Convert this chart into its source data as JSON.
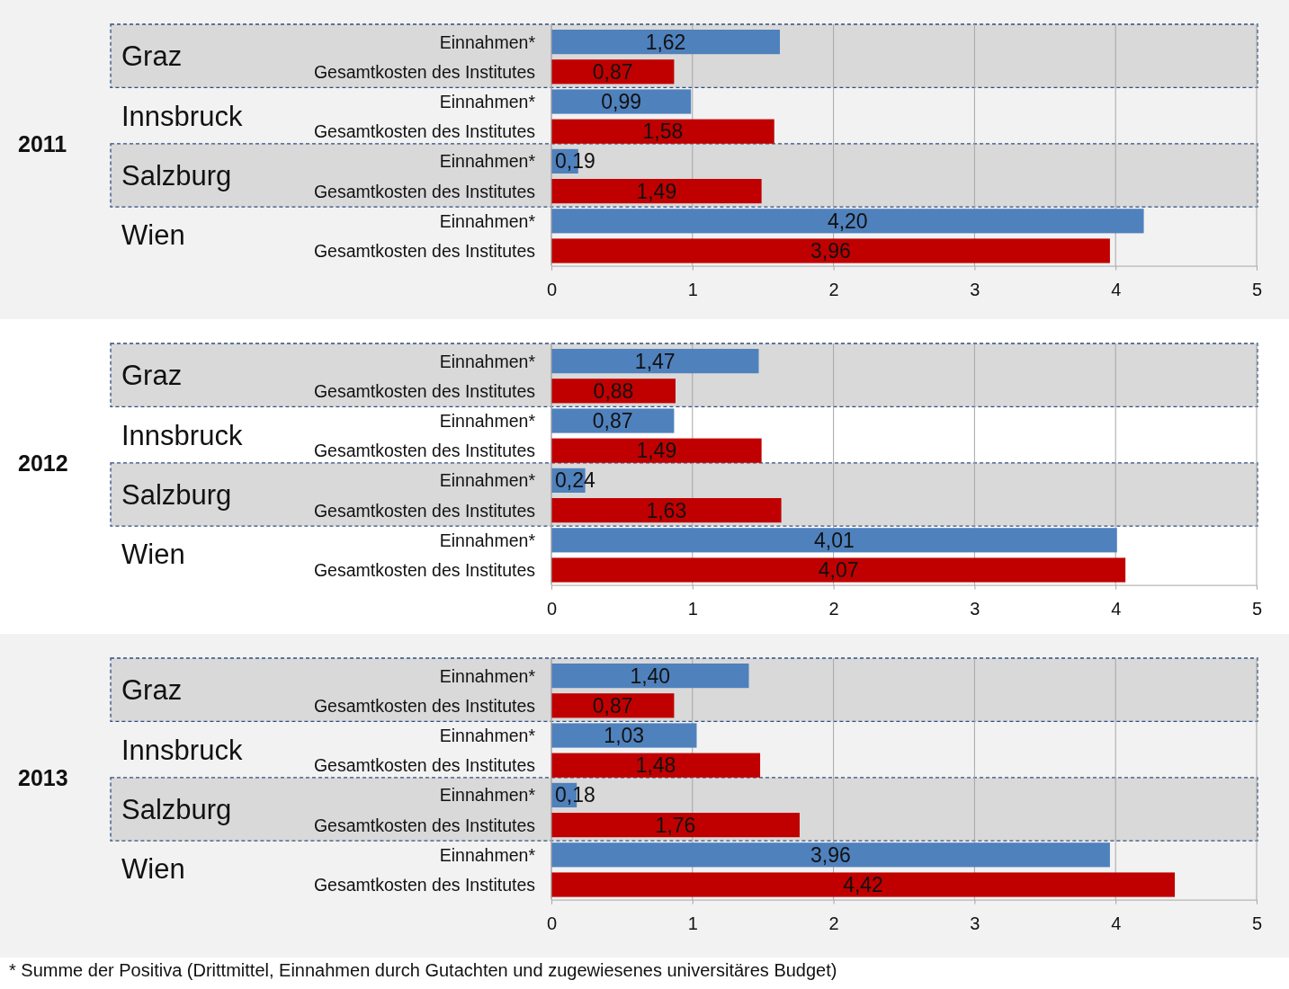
{
  "chart_data": [
    {
      "type": "bar",
      "orientation": "horizontal",
      "ylabel": "2011",
      "categories": [
        "Einnahmen*",
        "Gesamtkosten des Institutes",
        "Einnahmen*",
        "Gesamtkosten des Institutes",
        "Einnahmen*",
        "Gesamtkosten des Institutes",
        "Einnahmen*",
        "Gesamtkosten des Institutes"
      ],
      "values": [
        1.62,
        0.87,
        0.99,
        1.58,
        0.19,
        1.49,
        4.2,
        3.96
      ],
      "value_labels": [
        "1,62",
        "0,87",
        "0,99",
        "1,58",
        "0,19",
        "1,49",
        "4,20",
        "3,96"
      ],
      "colors": [
        "#4f81bd",
        "#c00000",
        "#4f81bd",
        "#c00000",
        "#4f81bd",
        "#c00000",
        "#4f81bd",
        "#c00000"
      ],
      "xlim": [
        0,
        5
      ],
      "xticks": [
        0,
        1,
        2,
        3,
        4,
        5
      ],
      "grid": "x",
      "annotations": [
        "Graz",
        "Innsbruck",
        "Salzburg",
        "Wien"
      ]
    },
    {
      "type": "bar",
      "orientation": "horizontal",
      "ylabel": "2012",
      "categories": [
        "Einnahmen*",
        "Gesamtkosten des Institutes",
        "Einnahmen*",
        "Gesamtkosten des Institutes",
        "Einnahmen*",
        "Gesamtkosten des Institutes",
        "Einnahmen*",
        "Gesamtkosten des Institutes"
      ],
      "values": [
        1.47,
        0.88,
        0.87,
        1.49,
        0.24,
        1.63,
        4.01,
        4.07
      ],
      "value_labels": [
        "1,47",
        "0,88",
        "0,87",
        "1,49",
        "0,24",
        "1,63",
        "4,01",
        "4,07"
      ],
      "colors": [
        "#4f81bd",
        "#c00000",
        "#4f81bd",
        "#c00000",
        "#4f81bd",
        "#c00000",
        "#4f81bd",
        "#c00000"
      ],
      "xlim": [
        0,
        5
      ],
      "xticks": [
        0,
        1,
        2,
        3,
        4,
        5
      ],
      "grid": "x",
      "annotations": [
        "Graz",
        "Innsbruck",
        "Salzburg",
        "Wien"
      ]
    },
    {
      "type": "bar",
      "orientation": "horizontal",
      "ylabel": "2013",
      "categories": [
        "Einnahmen*",
        "Gesamtkosten des Institutes",
        "Einnahmen*",
        "Gesamtkosten des Institutes",
        "Einnahmen*",
        "Gesamtkosten des Institutes",
        "Einnahmen*",
        "Gesamtkosten des Institutes"
      ],
      "values": [
        1.4,
        0.87,
        1.03,
        1.48,
        0.18,
        1.76,
        3.96,
        4.42
      ],
      "value_labels": [
        "1,40",
        "0,87",
        "1,03",
        "1,48",
        "0,18",
        "1,76",
        "3,96",
        "4,42"
      ],
      "colors": [
        "#4f81bd",
        "#c00000",
        "#4f81bd",
        "#c00000",
        "#4f81bd",
        "#c00000",
        "#4f81bd",
        "#c00000"
      ],
      "xlim": [
        0,
        5
      ],
      "xticks": [
        0,
        1,
        2,
        3,
        4,
        5
      ],
      "grid": "x",
      "annotations": [
        "Graz",
        "Innsbruck",
        "Salzburg",
        "Wien",
        "* Summe der Positiva (Drittmittel, Einnahmen durch Gutachten und zugewiesenes universitäres Budget)"
      ]
    }
  ]
}
